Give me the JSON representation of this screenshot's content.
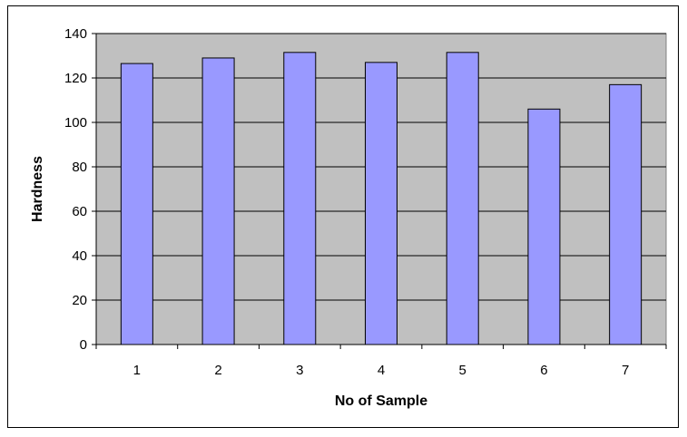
{
  "chart_data": {
    "type": "bar",
    "title": "",
    "xlabel": "No of Sample",
    "ylabel": "Hardness",
    "categories": [
      "1",
      "2",
      "3",
      "4",
      "5",
      "6",
      "7"
    ],
    "values": [
      126.5,
      129,
      131.5,
      127,
      131.5,
      106,
      117
    ],
    "ylim": [
      0,
      140
    ],
    "yticks": [
      0,
      20,
      40,
      60,
      80,
      100,
      120,
      140
    ],
    "grid": true,
    "legend": "none",
    "colors": {
      "bar_fill": "#9999ff",
      "bar_stroke": "#000000",
      "plot_background": "#c0c0c0",
      "grid": "#000000"
    }
  }
}
